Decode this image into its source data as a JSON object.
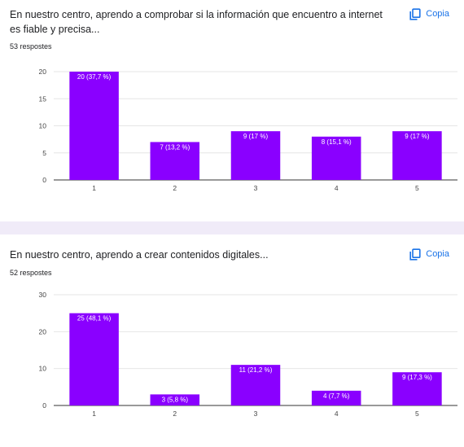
{
  "questions": [
    {
      "title": "En nuestro centro, aprendo a comprobar si la información que encuentro a internet es fiable y precisa...",
      "responses": "53 respostes",
      "copy_label": "Copia"
    },
    {
      "title": "En nuestro centro, aprendo a crear contenidos digitales...",
      "responses": "52 respostes",
      "copy_label": "Copia"
    }
  ],
  "colors": {
    "bar": "#8a00ff",
    "copy": "#1a73e8",
    "separator": "#f0ebf8"
  },
  "icons": {
    "copy": "copy-icon"
  },
  "chart_data": [
    {
      "type": "bar",
      "categories": [
        "1",
        "2",
        "3",
        "4",
        "5"
      ],
      "values": [
        20,
        7,
        9,
        8,
        9
      ],
      "data_labels": [
        "20 (37,7 %)",
        "7 (13,2 %)",
        "9 (17 %)",
        "8 (15,1 %)",
        "9 (17 %)"
      ],
      "title": "",
      "xlabel": "",
      "ylabel": "",
      "ylim": [
        0,
        20
      ],
      "yticks": [
        0,
        5,
        10,
        15,
        20
      ],
      "grid": true
    },
    {
      "type": "bar",
      "categories": [
        "1",
        "2",
        "3",
        "4",
        "5"
      ],
      "values": [
        25,
        3,
        11,
        4,
        9
      ],
      "data_labels": [
        "25 (48,1 %)",
        "3 (5,8 %)",
        "11 (21,2 %)",
        "4 (7,7 %)",
        "9 (17,3 %)"
      ],
      "title": "",
      "xlabel": "",
      "ylabel": "",
      "ylim": [
        0,
        30
      ],
      "yticks": [
        0,
        10,
        20,
        30
      ],
      "grid": true
    }
  ]
}
